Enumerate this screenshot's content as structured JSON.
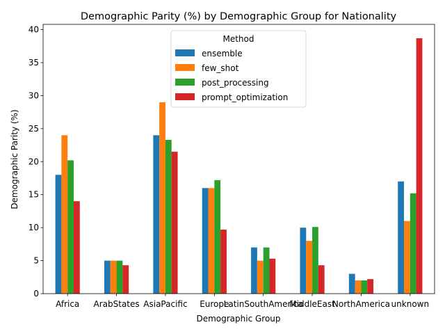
{
  "chart_data": {
    "type": "bar",
    "title": "Demographic Parity (%) by Demographic Group for Nationality",
    "xlabel": "Demographic Group",
    "ylabel": "Demographic Parity (%)",
    "ylim": [
      0,
      40.8
    ],
    "yticks": [
      0,
      5,
      10,
      15,
      20,
      25,
      30,
      35,
      40
    ],
    "grid": false,
    "legend": {
      "title": "Method",
      "placement": "upper-center"
    },
    "categories": [
      "Africa",
      "ArabStates",
      "AsiaPacific",
      "Europe",
      "LatinSouthAmerica",
      "MiddleEast",
      "NorthAmerica",
      "unknown"
    ],
    "series": [
      {
        "name": "ensemble",
        "color": "#1f77b4",
        "values": [
          18.0,
          5.0,
          24.0,
          16.0,
          7.0,
          10.0,
          3.0,
          17.0
        ]
      },
      {
        "name": "few_shot",
        "color": "#ff7f0e",
        "values": [
          24.0,
          5.0,
          29.0,
          16.0,
          5.0,
          8.0,
          2.0,
          11.0
        ]
      },
      {
        "name": "post_processing",
        "color": "#2ca02c",
        "values": [
          20.2,
          5.0,
          23.3,
          17.2,
          7.0,
          10.1,
          2.0,
          15.2
        ]
      },
      {
        "name": "prompt_optimization",
        "color": "#d62728",
        "values": [
          14.0,
          4.3,
          21.5,
          9.7,
          5.3,
          4.3,
          2.2,
          38.7
        ]
      }
    ]
  }
}
